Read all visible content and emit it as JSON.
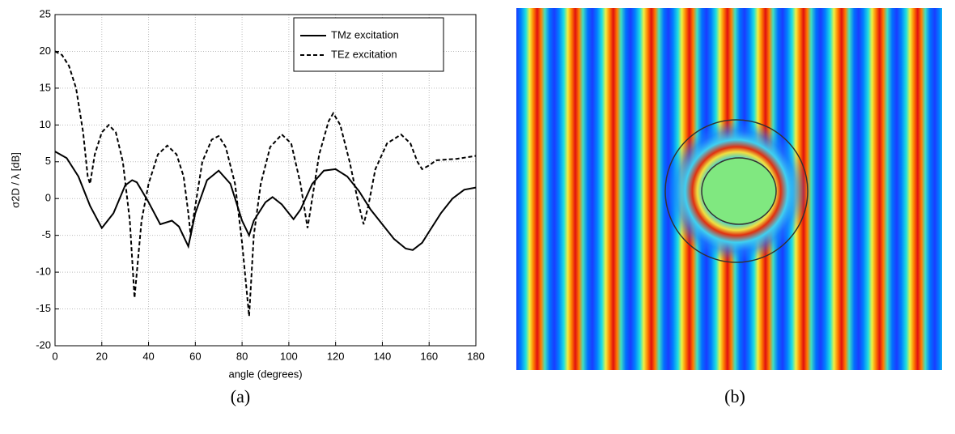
{
  "chart_data": {
    "type": "line",
    "xlabel": "angle (degrees)",
    "ylabel": "σ2D / λ [dB]",
    "xlim": [
      0,
      180
    ],
    "ylim": [
      -20,
      25
    ],
    "xticks": [
      0,
      20,
      40,
      60,
      80,
      100,
      120,
      140,
      160,
      180
    ],
    "yticks": [
      -20,
      -15,
      -10,
      -5,
      0,
      5,
      10,
      15,
      20,
      25
    ],
    "grid": true,
    "legend": "upper right",
    "series": [
      {
        "name": "TMz excitation",
        "color": "#000000",
        "dash": "solid",
        "x": [
          0,
          5,
          10,
          15,
          20,
          25,
          30,
          33,
          35,
          40,
          45,
          50,
          53,
          57,
          60,
          65,
          70,
          75,
          80,
          83,
          85,
          90,
          93,
          97,
          102,
          105,
          110,
          115,
          120,
          125,
          130,
          135,
          140,
          145,
          150,
          153,
          157,
          160,
          165,
          170,
          175,
          180
        ],
        "values": [
          6.4,
          5.5,
          3,
          -1,
          -4,
          -2,
          1.8,
          2.5,
          2.2,
          -0.5,
          -3.5,
          -3,
          -3.8,
          -6.5,
          -2,
          2.5,
          3.8,
          2,
          -3,
          -5,
          -3,
          -0.5,
          0.2,
          -0.8,
          -2.8,
          -1.5,
          2,
          3.8,
          4,
          3,
          1,
          -1.5,
          -3.5,
          -5.5,
          -6.8,
          -7,
          -6,
          -4.5,
          -2,
          0,
          1.2,
          1.5
        ]
      },
      {
        "name": "TEz excitation",
        "color": "#000000",
        "dash": "dashed",
        "x": [
          0,
          3,
          6,
          9,
          12,
          14,
          15,
          17,
          20,
          23,
          26,
          29,
          32,
          34,
          35,
          37,
          40,
          44,
          48,
          52,
          55,
          57,
          58,
          60,
          63,
          67,
          70,
          73,
          77,
          80,
          83,
          85,
          88,
          92,
          97,
          101,
          105,
          107,
          108,
          110,
          113,
          117,
          119,
          122,
          126,
          130,
          132,
          134,
          137,
          142,
          148,
          152,
          155,
          157,
          160,
          163,
          167,
          172,
          176,
          180
        ],
        "values": [
          20,
          19.5,
          18,
          15,
          9,
          3,
          2,
          6,
          9,
          10,
          9,
          5,
          -3,
          -13.5,
          -10,
          -3,
          2,
          6,
          7.2,
          6,
          3,
          -2,
          -5,
          -1,
          5,
          8,
          8.5,
          7,
          2,
          -6,
          -16,
          -5,
          2,
          7,
          8.7,
          7.5,
          2,
          -2,
          -4,
          0,
          6,
          10.5,
          11.6,
          10,
          5,
          -1,
          -3.5,
          -1,
          4,
          7.5,
          8.7,
          7.5,
          5,
          4,
          4.5,
          5.2,
          5.3,
          5.4,
          5.6,
          5.8
        ]
      }
    ]
  },
  "panel_labels": [
    "(a)",
    "(b)"
  ]
}
